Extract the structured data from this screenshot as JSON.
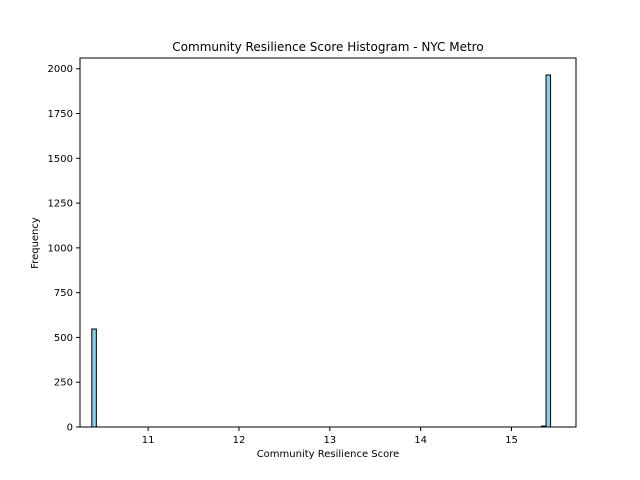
{
  "chart_data": {
    "type": "bar",
    "title": "Community Resilience Score Histogram - NYC Metro",
    "xlabel": "Community Resilience Score",
    "ylabel": "Frequency",
    "xlim": [
      10.25,
      15.71
    ],
    "ylim": [
      0,
      2060
    ],
    "xticks": [
      11,
      12,
      13,
      14,
      15
    ],
    "yticks": [
      0,
      250,
      500,
      750,
      1000,
      1250,
      1500,
      1750,
      2000
    ],
    "bin_width": 0.05,
    "bins": [
      {
        "x0": 10.38,
        "x1": 10.43,
        "count": 547
      },
      {
        "x0": 15.33,
        "x1": 15.38,
        "count": 5
      },
      {
        "x0": 15.38,
        "x1": 15.43,
        "count": 1965
      }
    ],
    "grid": false,
    "legend": "none",
    "colors": {
      "bar_fill": "#87ceeb",
      "bar_edge": "#000000",
      "axes": "#000000",
      "background": "#ffffff"
    }
  }
}
